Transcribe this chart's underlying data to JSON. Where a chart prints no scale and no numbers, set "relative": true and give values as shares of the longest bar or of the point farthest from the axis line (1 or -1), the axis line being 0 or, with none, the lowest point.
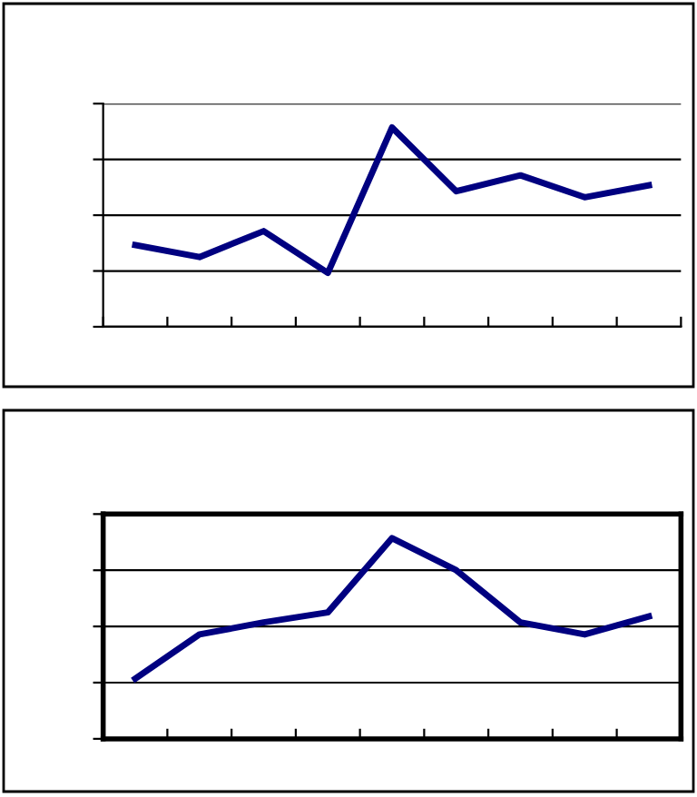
{
  "chart_data": [
    {
      "type": "line",
      "relative": true,
      "categories": [
        null,
        null,
        null,
        null,
        null,
        null,
        null,
        null,
        null
      ],
      "series": [
        {
          "color": "#000080",
          "values": [
            0.41,
            0.35,
            0.48,
            0.27,
            1,
            0.68,
            0.76,
            0.65,
            0.71
          ]
        }
      ],
      "grid": "y",
      "marker": "none",
      "line_style": "solid"
    },
    {
      "type": "line",
      "relative": true,
      "categories": [
        null,
        null,
        null,
        null,
        null,
        null,
        null,
        null,
        null
      ],
      "series": [
        {
          "color": "#000080",
          "values": [
            0.3,
            0.52,
            0.58,
            0.63,
            1,
            0.84,
            0.58,
            0.52,
            0.61
          ]
        }
      ],
      "grid": "y",
      "marker": "none",
      "line_style": "solid"
    }
  ]
}
